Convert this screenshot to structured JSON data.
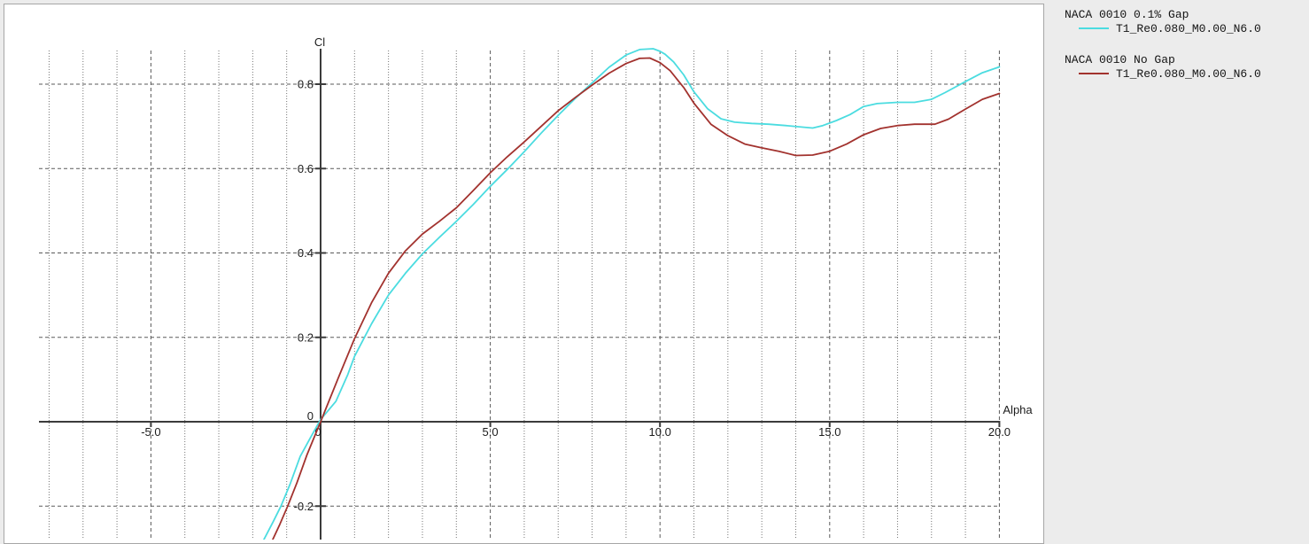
{
  "window": {
    "background_color": "#ececec",
    "panel_background_color": "#ffffff"
  },
  "chart_data": {
    "type": "line",
    "title": "",
    "xlabel": "Alpha",
    "ylabel": "Cl",
    "xlim": [
      -8.3,
      20.0
    ],
    "ylim": [
      -0.28,
      0.885
    ],
    "grid": {
      "major": "dashed",
      "minor": "dotted-vertical-every-1-alpha",
      "legend_position": "outside-right"
    },
    "axis_color": "#3b3b3b",
    "major_grid_color": "#5a5a5a",
    "minor_grid_color": "#757575",
    "x_ticks": [
      {
        "v": -5,
        "label": "-5.0"
      },
      {
        "v": 0,
        "label": "0"
      },
      {
        "v": 5,
        "label": "5.0"
      },
      {
        "v": 10,
        "label": "10.0"
      },
      {
        "v": 15,
        "label": "15.0"
      },
      {
        "v": 20,
        "label": "20.0"
      }
    ],
    "y_ticks": [
      {
        "v": 0.8,
        "label": "0.8"
      },
      {
        "v": 0.6,
        "label": "0.6"
      },
      {
        "v": 0.4,
        "label": "0.4"
      },
      {
        "v": 0.2,
        "label": "0.2"
      },
      {
        "v": 0,
        "label": "0"
      },
      {
        "v": -0.2,
        "label": "-0.2"
      }
    ],
    "series": [
      {
        "name": "NACA 0010 0.1% Gap",
        "polar": "T1_Re0.080_M0.00_N6.0",
        "color": "#4bdce0",
        "points": [
          [
            -1.67,
            -0.279
          ],
          [
            -1.4,
            -0.237
          ],
          [
            -1.17,
            -0.2
          ],
          [
            -0.9,
            -0.148
          ],
          [
            -0.6,
            -0.082
          ],
          [
            -0.3,
            -0.038
          ],
          [
            0.0,
            0.005
          ],
          [
            0.45,
            0.048
          ],
          [
            0.8,
            0.112
          ],
          [
            1.0,
            0.155
          ],
          [
            1.5,
            0.232
          ],
          [
            2.0,
            0.3
          ],
          [
            2.5,
            0.352
          ],
          [
            3.0,
            0.398
          ],
          [
            3.5,
            0.437
          ],
          [
            4.0,
            0.475
          ],
          [
            4.5,
            0.515
          ],
          [
            5.0,
            0.558
          ],
          [
            5.5,
            0.598
          ],
          [
            6.0,
            0.64
          ],
          [
            6.5,
            0.684
          ],
          [
            7.0,
            0.726
          ],
          [
            7.5,
            0.766
          ],
          [
            8.0,
            0.803
          ],
          [
            8.5,
            0.84
          ],
          [
            9.0,
            0.869
          ],
          [
            9.4,
            0.882
          ],
          [
            9.8,
            0.884
          ],
          [
            10.0,
            0.878
          ],
          [
            10.15,
            0.871
          ],
          [
            10.4,
            0.853
          ],
          [
            10.7,
            0.822
          ],
          [
            11.0,
            0.782
          ],
          [
            11.4,
            0.742
          ],
          [
            11.8,
            0.718
          ],
          [
            12.2,
            0.71
          ],
          [
            12.7,
            0.707
          ],
          [
            13.2,
            0.705
          ],
          [
            13.7,
            0.702
          ],
          [
            14.1,
            0.699
          ],
          [
            14.5,
            0.696
          ],
          [
            14.8,
            0.702
          ],
          [
            15.2,
            0.714
          ],
          [
            15.6,
            0.728
          ],
          [
            16.0,
            0.747
          ],
          [
            16.4,
            0.754
          ],
          [
            17.0,
            0.757
          ],
          [
            17.5,
            0.757
          ],
          [
            18.0,
            0.764
          ],
          [
            18.4,
            0.78
          ],
          [
            19.0,
            0.806
          ],
          [
            19.5,
            0.827
          ],
          [
            20.0,
            0.841
          ]
        ]
      },
      {
        "name": "NACA 0010 No Gap",
        "polar": "T1_Re0.080_M0.00_N6.0",
        "color": "#a2322e",
        "points": [
          [
            -1.41,
            -0.279
          ],
          [
            -1.2,
            -0.243
          ],
          [
            -0.97,
            -0.2
          ],
          [
            -0.7,
            -0.145
          ],
          [
            -0.4,
            -0.078
          ],
          [
            0.0,
            0.0
          ],
          [
            0.5,
            0.1
          ],
          [
            1.0,
            0.197
          ],
          [
            1.5,
            0.282
          ],
          [
            2.0,
            0.352
          ],
          [
            2.5,
            0.405
          ],
          [
            3.0,
            0.445
          ],
          [
            3.5,
            0.475
          ],
          [
            4.0,
            0.507
          ],
          [
            4.5,
            0.548
          ],
          [
            5.0,
            0.59
          ],
          [
            5.5,
            0.628
          ],
          [
            6.0,
            0.663
          ],
          [
            6.5,
            0.7
          ],
          [
            7.0,
            0.737
          ],
          [
            7.5,
            0.768
          ],
          [
            8.0,
            0.798
          ],
          [
            8.5,
            0.826
          ],
          [
            9.0,
            0.849
          ],
          [
            9.4,
            0.861
          ],
          [
            9.7,
            0.862
          ],
          [
            10.0,
            0.851
          ],
          [
            10.3,
            0.832
          ],
          [
            10.7,
            0.792
          ],
          [
            11.0,
            0.755
          ],
          [
            11.5,
            0.705
          ],
          [
            12.0,
            0.678
          ],
          [
            12.5,
            0.658
          ],
          [
            13.0,
            0.649
          ],
          [
            13.5,
            0.641
          ],
          [
            14.0,
            0.631
          ],
          [
            14.5,
            0.632
          ],
          [
            15.0,
            0.641
          ],
          [
            15.5,
            0.658
          ],
          [
            16.0,
            0.68
          ],
          [
            16.5,
            0.695
          ],
          [
            17.0,
            0.702
          ],
          [
            17.5,
            0.705
          ],
          [
            18.1,
            0.705
          ],
          [
            18.5,
            0.717
          ],
          [
            19.0,
            0.741
          ],
          [
            19.5,
            0.764
          ],
          [
            20.0,
            0.778
          ]
        ]
      }
    ]
  }
}
